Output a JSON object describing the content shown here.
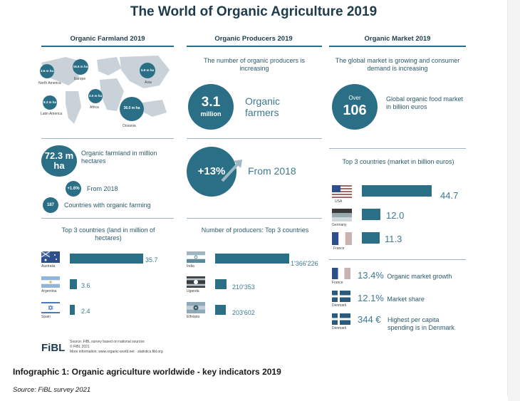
{
  "title": "The World of Organic Agriculture 2019",
  "columns": {
    "farmland": "Organic Farmland 2019",
    "producers": "Organic Producers 2019",
    "market": "Organic Market 2019"
  },
  "map": {
    "regions": [
      {
        "value": "3.6 m ha",
        "label": "North America"
      },
      {
        "value": "16.5 m ha",
        "label": "Europe"
      },
      {
        "value": "5.9 m ha",
        "label": "Asia"
      },
      {
        "value": "8.3 m ha",
        "label": "Latin America"
      },
      {
        "value": "2.0 m ha",
        "label": "Africa"
      },
      {
        "value": "36.0 m ha",
        "label": "Oceania"
      }
    ]
  },
  "farmland": {
    "total_value": "72.3 m ha",
    "total_label": "Organic farmland in million hectares",
    "growth_value": "+1.6%",
    "growth_label": "From 2018",
    "countries_value": "187",
    "countries_label": "Countries with organic farming",
    "top3_title": "Top 3 countries (land in million of hectares)"
  },
  "producers": {
    "intro": "The number of organic producers is increasing",
    "total_value": "3.1",
    "total_unit": "million",
    "total_label": "Organic farmers",
    "growth_value": "+13%",
    "growth_label": "From 2018",
    "top3_title": "Number of producers: Top 3 countries"
  },
  "market": {
    "intro": "The global market is growing and consumer demand is increasing",
    "over_label": "Over",
    "over_value": "106",
    "over_desc": "Global organic food market in billion euros",
    "top3_title": "Top 3 countries (market in billion euros)",
    "stats": [
      {
        "country": "France",
        "value": "13.4%",
        "label": "Organic market growth"
      },
      {
        "country": "Denmark",
        "value": "12.1%",
        "label": "Market share"
      },
      {
        "country": "Denmark",
        "value": "344 €",
        "label": "Highest per capita spending is in Denmark"
      }
    ]
  },
  "chart_data": [
    {
      "type": "bar",
      "title": "Top 3 countries (land in million of hectares)",
      "categories": [
        "Australia",
        "Argentina",
        "Spain"
      ],
      "values": [
        35.7,
        3.6,
        2.4
      ],
      "labels": [
        "35.7",
        "3.6",
        "2.4"
      ],
      "ylim": [
        0,
        35.7
      ]
    },
    {
      "type": "bar",
      "title": "Number of producers: Top 3 countries",
      "categories": [
        "India",
        "Uganda",
        "Ethiopia"
      ],
      "values": [
        1366226,
        210353,
        203602
      ],
      "labels": [
        "1'366'226",
        "210'353",
        "203'602"
      ],
      "ylim": [
        0,
        1366226
      ]
    },
    {
      "type": "bar",
      "title": "Top 3 countries (market in billion euros)",
      "categories": [
        "USA",
        "Germany",
        "France"
      ],
      "values": [
        44.7,
        12.0,
        11.3
      ],
      "labels": [
        "44.7",
        "12.0",
        "11.3"
      ],
      "ylim": [
        0,
        44.7
      ]
    }
  ],
  "footer": {
    "logo": "FiBL",
    "source_small": "Source: FiBL survey based on national sources",
    "copyright": "© FiBL 2021",
    "more_info": "More information: www.organic-world.net · statistics.fibl.org",
    "caption": "Infographic 1: Organic agriculture worldwide - key indicators 2019",
    "source": "Source: FiBL survey 2021"
  },
  "colors": {
    "accent": "#2b6f86",
    "title": "#1e3c4c",
    "map_land": "#c9d2d8"
  }
}
